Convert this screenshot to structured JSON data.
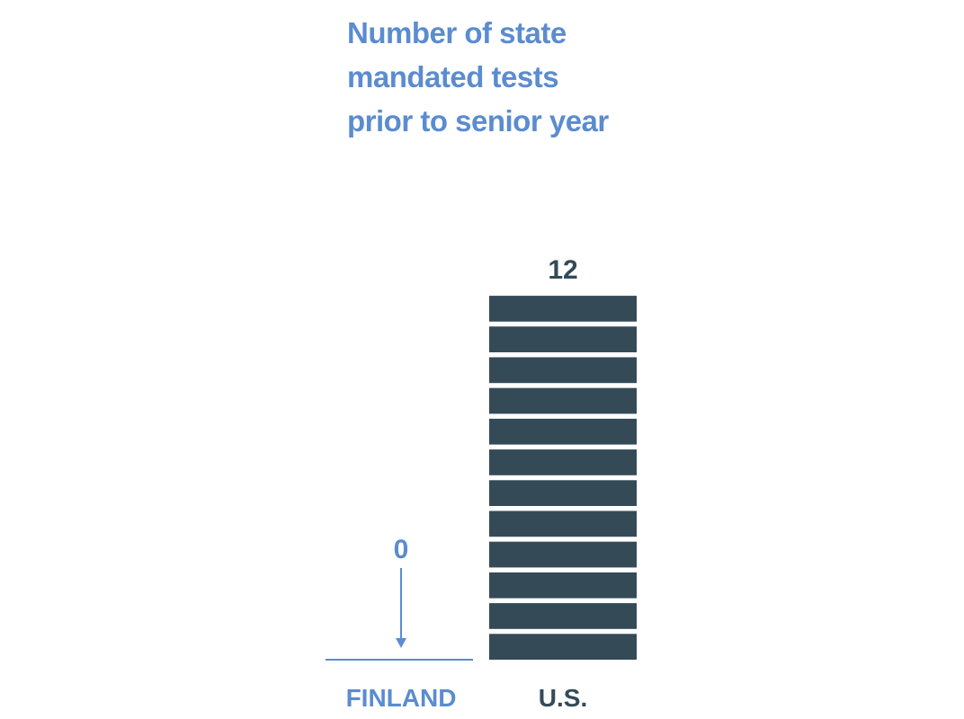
{
  "chart_data": {
    "type": "bar",
    "title": [
      "Number of state",
      "mandated tests",
      "prior to senior year"
    ],
    "categories": [
      "FINLAND",
      "U.S."
    ],
    "values": [
      0,
      12
    ],
    "value_labels": [
      "0",
      "12"
    ],
    "colors": {
      "title": "#5b8cd0",
      "finland": "#5b8cd0",
      "us": "#344a57"
    }
  }
}
